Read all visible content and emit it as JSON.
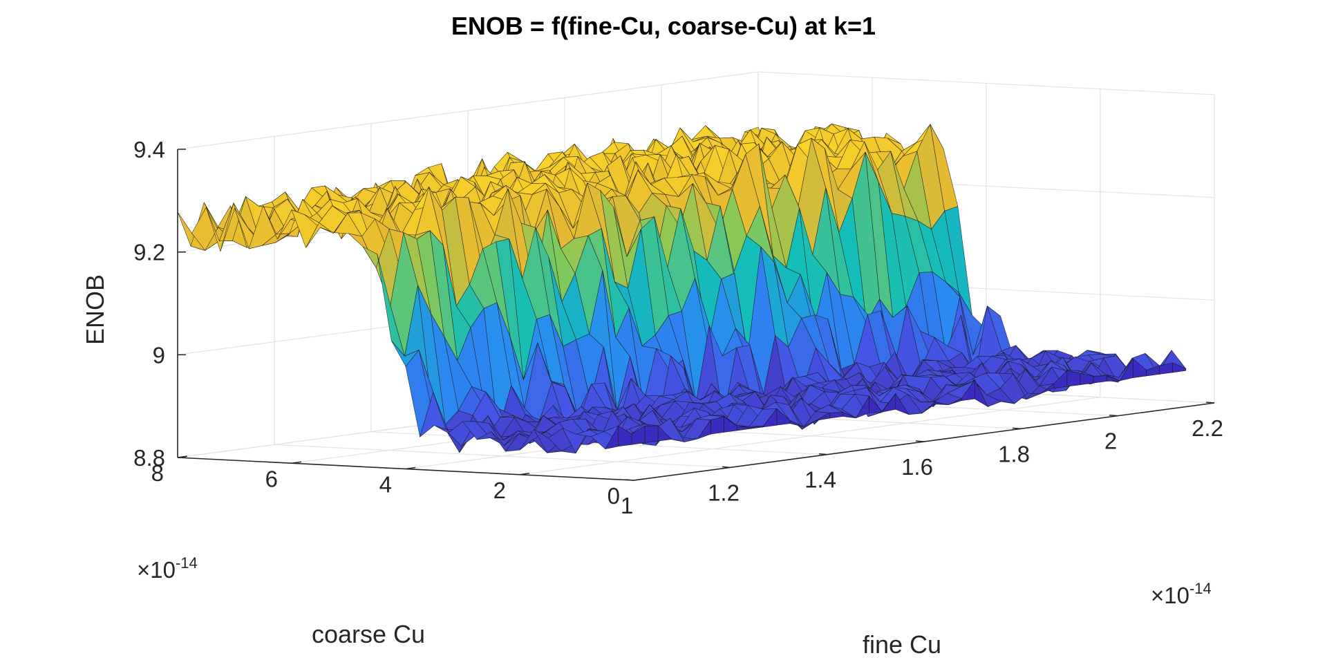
{
  "chart_data": {
    "type": "surface3d",
    "title": "ENOB = f(fine-Cu, coarse-Cu) at k=1",
    "xlabel": "fine Cu",
    "ylabel": "coarse Cu",
    "zlabel": "ENOB",
    "x_ticks": [
      1,
      1.2,
      1.4,
      1.6,
      1.8,
      2,
      2.2
    ],
    "x_tick_labels": [
      "1",
      "1.2",
      "1.4",
      "1.6",
      "1.8",
      "2",
      "2.2"
    ],
    "y_ticks": [
      0,
      2,
      4,
      6,
      8
    ],
    "y_tick_labels": [
      "0",
      "2",
      "4",
      "6",
      "8"
    ],
    "z_ticks": [
      8.8,
      9,
      9.2,
      9.4
    ],
    "z_tick_labels": [
      "8.8",
      "9",
      "9.2",
      "9.4"
    ],
    "x_exponent": "×10",
    "x_exponent_power": "-14",
    "y_exponent": "×10",
    "y_exponent_power": "-14",
    "xlim": [
      1,
      2.2
    ],
    "ylim": [
      0,
      8
    ],
    "zlim": [
      8.8,
      9.4
    ],
    "grid": true,
    "colormap": "parula",
    "surface": {
      "x_range": [
        1,
        2.2
      ],
      "y_range": [
        0.5,
        8
      ],
      "high_level": 9.25,
      "low_level": 8.87,
      "transition_y": 4.3,
      "high_level_trend_over_x": 0.02,
      "noise_amplitude_high": 0.05,
      "noise_amplitude_low": 0.03
    }
  }
}
